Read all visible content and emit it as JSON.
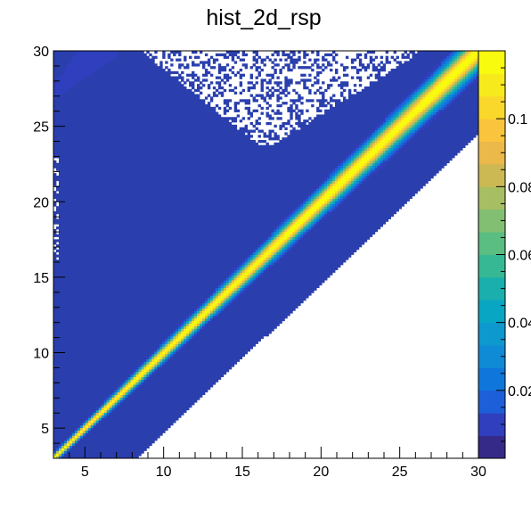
{
  "chart_data": {
    "type": "heatmap",
    "title": "hist_2d_rsp",
    "xlabel": "",
    "ylabel": "",
    "xlim": [
      3,
      30
    ],
    "ylim": [
      3,
      30
    ],
    "x_ticks": [
      "5",
      "10",
      "15",
      "20",
      "25",
      "30"
    ],
    "y_ticks": [
      "5",
      "10",
      "15",
      "20",
      "25",
      "30"
    ],
    "colorbar": {
      "zlim": [
        0,
        0.12
      ],
      "ticks": [
        "0.02",
        "0.04",
        "0.06",
        "0.08",
        "0.1"
      ],
      "palette": "kBird",
      "colors": [
        "#352a87",
        "#2f3fbd",
        "#1d5fd9",
        "#0f77db",
        "#0f8ad5",
        "#0d99ce",
        "#09a6c3",
        "#1aafad",
        "#36b895",
        "#5abd81",
        "#82bf72",
        "#a8be62",
        "#ccb954",
        "#ebb84a",
        "#fbc43d",
        "#f9d82b",
        "#f7ea1c",
        "#f9fb0e"
      ],
      "background_color": "#2a3fad"
    },
    "description_data": {
      "diagonal_peak_z": 0.12,
      "diagonal_sigma_near_x3": 0.12,
      "diagonal_sigma_near_x30": 0.55,
      "lower_edge_offset_start": 5.3,
      "lower_edge_offset_end": 5.5,
      "empty_region_above": {
        "x": [
          8.5,
          26.5
        ],
        "y": [
          23.8,
          30
        ]
      },
      "sparse_upper_left_strip": {
        "x": [
          3,
          7
        ],
        "y": [
          26.8,
          30
        ]
      }
    }
  }
}
